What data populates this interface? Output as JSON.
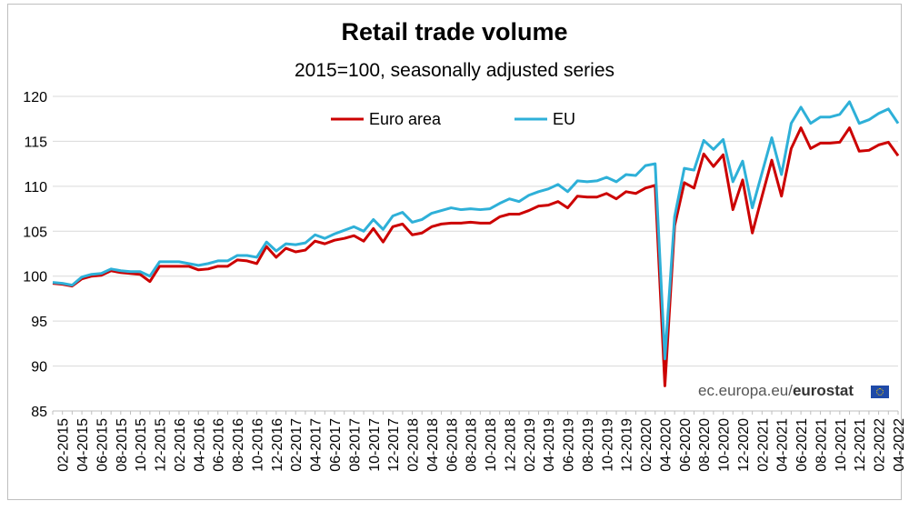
{
  "chart_data": {
    "type": "line",
    "title": "Retail trade volume",
    "subtitle": "2015=100, seasonally adjusted series",
    "xlabel": "",
    "ylabel": "",
    "ylim": [
      85,
      120
    ],
    "yticks": [
      85,
      90,
      95,
      100,
      105,
      110,
      115,
      120
    ],
    "grid": "horizontal",
    "legend_position": "top",
    "x": [
      "01-2015",
      "02-2015",
      "03-2015",
      "04-2015",
      "05-2015",
      "06-2015",
      "07-2015",
      "08-2015",
      "09-2015",
      "10-2015",
      "11-2015",
      "12-2015",
      "01-2016",
      "02-2016",
      "03-2016",
      "04-2016",
      "05-2016",
      "06-2016",
      "07-2016",
      "08-2016",
      "09-2016",
      "10-2016",
      "11-2016",
      "12-2016",
      "01-2017",
      "02-2017",
      "03-2017",
      "04-2017",
      "05-2017",
      "06-2017",
      "07-2017",
      "08-2017",
      "09-2017",
      "10-2017",
      "11-2017",
      "12-2017",
      "01-2018",
      "02-2018",
      "03-2018",
      "04-2018",
      "05-2018",
      "06-2018",
      "07-2018",
      "08-2018",
      "09-2018",
      "10-2018",
      "11-2018",
      "12-2018",
      "01-2019",
      "02-2019",
      "03-2019",
      "04-2019",
      "05-2019",
      "06-2019",
      "07-2019",
      "08-2019",
      "09-2019",
      "10-2019",
      "11-2019",
      "12-2019",
      "01-2020",
      "02-2020",
      "03-2020",
      "04-2020",
      "05-2020",
      "06-2020",
      "07-2020",
      "08-2020",
      "09-2020",
      "10-2020",
      "11-2020",
      "12-2020",
      "01-2021",
      "02-2021",
      "03-2021",
      "04-2021",
      "05-2021",
      "06-2021",
      "07-2021",
      "08-2021",
      "09-2021",
      "10-2021",
      "11-2021",
      "12-2021",
      "01-2022",
      "02-2022",
      "03-2022",
      "04-2022"
    ],
    "x_tick_labels": [
      "02-2015",
      "04-2015",
      "06-2015",
      "08-2015",
      "10-2015",
      "12-2015",
      "02-2016",
      "04-2016",
      "06-2016",
      "08-2016",
      "10-2016",
      "12-2016",
      "02-2017",
      "04-2017",
      "06-2017",
      "08-2017",
      "10-2017",
      "12-2017",
      "02-2018",
      "04-2018",
      "06-2018",
      "08-2018",
      "10-2018",
      "12-2018",
      "02-2019",
      "04-2019",
      "06-2019",
      "08-2019",
      "10-2019",
      "12-2019",
      "02-2020",
      "04-2020",
      "06-2020",
      "08-2020",
      "10-2020",
      "12-2020",
      "02-2021",
      "04-2021",
      "06-2021",
      "08-2021",
      "10-2021",
      "12-2021",
      "02-2022",
      "04-2022"
    ],
    "series": [
      {
        "name": "Euro area",
        "color": "#cc0000",
        "values": [
          99.2,
          99.1,
          98.9,
          99.7,
          100.0,
          100.1,
          100.6,
          100.4,
          100.3,
          100.2,
          99.4,
          101.1,
          101.1,
          101.1,
          101.1,
          100.7,
          100.8,
          101.1,
          101.1,
          101.8,
          101.7,
          101.4,
          103.3,
          102.1,
          103.1,
          102.7,
          102.9,
          103.9,
          103.6,
          104.0,
          104.2,
          104.5,
          103.9,
          105.3,
          103.8,
          105.5,
          105.8,
          104.6,
          104.8,
          105.5,
          105.8,
          105.9,
          105.9,
          106.0,
          105.9,
          105.9,
          106.6,
          106.9,
          106.9,
          107.3,
          107.8,
          107.9,
          108.3,
          107.6,
          108.9,
          108.8,
          108.8,
          109.2,
          108.6,
          109.4,
          109.2,
          109.8,
          110.1,
          87.8,
          105.6,
          110.4,
          109.8,
          113.6,
          112.2,
          113.5,
          107.4,
          110.7,
          104.8,
          108.9,
          112.9,
          108.9,
          114.2,
          116.5,
          114.2,
          114.8,
          114.8,
          114.9,
          116.5,
          113.9,
          114.0,
          114.6,
          114.9,
          113.4
        ]
      },
      {
        "name": "EU",
        "color": "#2eb0d8",
        "values": [
          99.3,
          99.2,
          99.0,
          99.9,
          100.2,
          100.3,
          100.8,
          100.6,
          100.5,
          100.5,
          100.0,
          101.6,
          101.6,
          101.6,
          101.4,
          101.2,
          101.4,
          101.7,
          101.7,
          102.3,
          102.3,
          102.1,
          103.8,
          102.8,
          103.6,
          103.5,
          103.7,
          104.6,
          104.2,
          104.7,
          105.1,
          105.5,
          105.0,
          106.3,
          105.2,
          106.7,
          107.1,
          106.0,
          106.3,
          107.0,
          107.3,
          107.6,
          107.4,
          107.5,
          107.4,
          107.5,
          108.1,
          108.6,
          108.3,
          109.0,
          109.4,
          109.7,
          110.2,
          109.4,
          110.6,
          110.5,
          110.6,
          111.0,
          110.5,
          111.3,
          111.2,
          112.3,
          112.5,
          90.8,
          106.6,
          112.0,
          111.8,
          115.1,
          114.1,
          115.2,
          110.5,
          112.8,
          107.6,
          111.5,
          115.4,
          111.3,
          117.0,
          118.8,
          117.0,
          117.7,
          117.7,
          118.0,
          119.4,
          117.0,
          117.4,
          118.1,
          118.6,
          117.0
        ]
      }
    ]
  },
  "source": {
    "site": "ec.europa.eu/",
    "brand": "eurostat"
  }
}
